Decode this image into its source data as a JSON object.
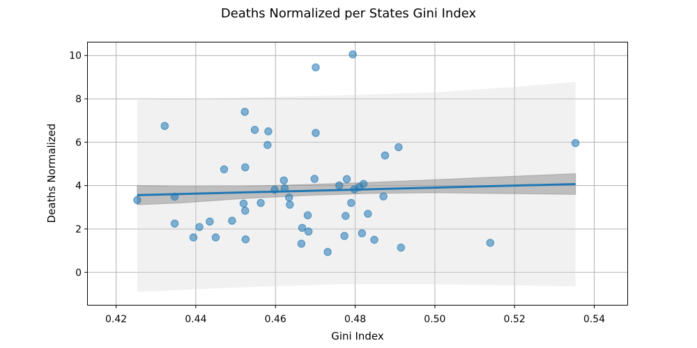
{
  "chart_data": {
    "type": "scatter",
    "title": "Deaths Normalized per States Gini Index",
    "xlabel": "Gini Index",
    "ylabel": "Deaths Normalized",
    "xlim": [
      0.4129,
      0.5483
    ],
    "ylim": [
      -1.5,
      10.6
    ],
    "xticks": [
      0.42,
      0.44,
      0.46,
      0.48,
      0.5,
      0.52,
      0.54
    ],
    "xtick_labels": [
      "0.42",
      "0.44",
      "0.46",
      "0.48",
      "0.50",
      "0.52",
      "0.54"
    ],
    "yticks": [
      0,
      2,
      4,
      6,
      8,
      10
    ],
    "ytick_labels": [
      "0",
      "2",
      "4",
      "6",
      "8",
      "10"
    ],
    "grid": true,
    "colors": {
      "points": "#1f77b4",
      "regression_line": "#1f77b4",
      "confidence_band": "#808080",
      "prediction_band": "#d8d8d8"
    },
    "points": {
      "x": [
        0.4253,
        0.4322,
        0.4347,
        0.4347,
        0.4394,
        0.4409,
        0.4435,
        0.445,
        0.4471,
        0.4491,
        0.452,
        0.4523,
        0.4524,
        0.4524,
        0.4525,
        0.4548,
        0.4563,
        0.458,
        0.4582,
        0.4598,
        0.4621,
        0.4623,
        0.4634,
        0.4636,
        0.4665,
        0.4667,
        0.4681,
        0.4683,
        0.4698,
        0.4701,
        0.4701,
        0.4731,
        0.476,
        0.4773,
        0.4776,
        0.4779,
        0.479,
        0.4794,
        0.4798,
        0.481,
        0.4817,
        0.4821,
        0.4832,
        0.4848,
        0.4871,
        0.4875,
        0.4909,
        0.4915,
        0.5139,
        0.5353
      ],
      "y": [
        3.33,
        6.75,
        3.49,
        2.25,
        1.61,
        2.09,
        2.34,
        1.61,
        4.75,
        2.38,
        3.17,
        7.4,
        4.84,
        2.84,
        1.52,
        6.57,
        3.2,
        5.87,
        6.5,
        3.81,
        4.24,
        3.87,
        3.45,
        3.12,
        1.32,
        2.05,
        2.63,
        1.88,
        4.31,
        9.45,
        6.43,
        0.94,
        4.01,
        1.68,
        2.6,
        4.3,
        3.2,
        10.05,
        3.83,
        3.93,
        1.8,
        4.08,
        2.7,
        1.5,
        3.5,
        5.39,
        5.77,
        1.14,
        1.36,
        5.96
      ]
    },
    "regression": {
      "x": [
        0.4253,
        0.5353
      ],
      "y": [
        3.56,
        4.07
      ]
    },
    "confidence_band": {
      "x": [
        0.4253,
        0.436,
        0.452,
        0.468,
        0.484,
        0.5,
        0.52,
        0.5353
      ],
      "upper": [
        4.0,
        3.96,
        3.97,
        4.05,
        4.15,
        4.27,
        4.43,
        4.55
      ],
      "lower": [
        3.12,
        3.2,
        3.4,
        3.55,
        3.64,
        3.67,
        3.63,
        3.59
      ]
    },
    "prediction_band": {
      "x": [
        0.4253,
        0.45,
        0.475,
        0.5,
        0.52,
        0.5353
      ],
      "upper": [
        7.95,
        8.05,
        8.15,
        8.3,
        8.55,
        8.78
      ],
      "lower": [
        -0.9,
        -0.7,
        -0.55,
        -0.55,
        -0.6,
        -0.65
      ]
    }
  }
}
